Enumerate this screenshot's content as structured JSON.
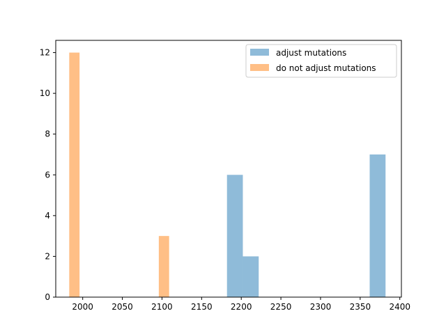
{
  "chart_data": {
    "type": "bar",
    "title": "",
    "xlabel": "",
    "ylabel": "",
    "xlim": [
      1966,
      2402
    ],
    "ylim": [
      0,
      12.6
    ],
    "xticks": [
      2000,
      2050,
      2100,
      2150,
      2200,
      2250,
      2300,
      2350,
      2400
    ],
    "yticks": [
      0,
      2,
      4,
      6,
      8,
      10,
      12
    ],
    "grid": false,
    "legend_position": "upper right",
    "series": [
      {
        "name": "adjust mutations",
        "color": "#1f77b4",
        "opacity": 0.5,
        "bins": [
          {
            "x0": 2182,
            "x1": 2202,
            "count": 6
          },
          {
            "x0": 2202,
            "x1": 2222,
            "count": 2
          },
          {
            "x0": 2362,
            "x1": 2382,
            "count": 7
          }
        ]
      },
      {
        "name": "do not adjust mutations",
        "color": "#ff7f0e",
        "opacity": 0.5,
        "bins": [
          {
            "x0": 1983,
            "x1": 1996,
            "count": 12
          },
          {
            "x0": 2096,
            "x1": 2109,
            "count": 3
          }
        ]
      }
    ]
  }
}
